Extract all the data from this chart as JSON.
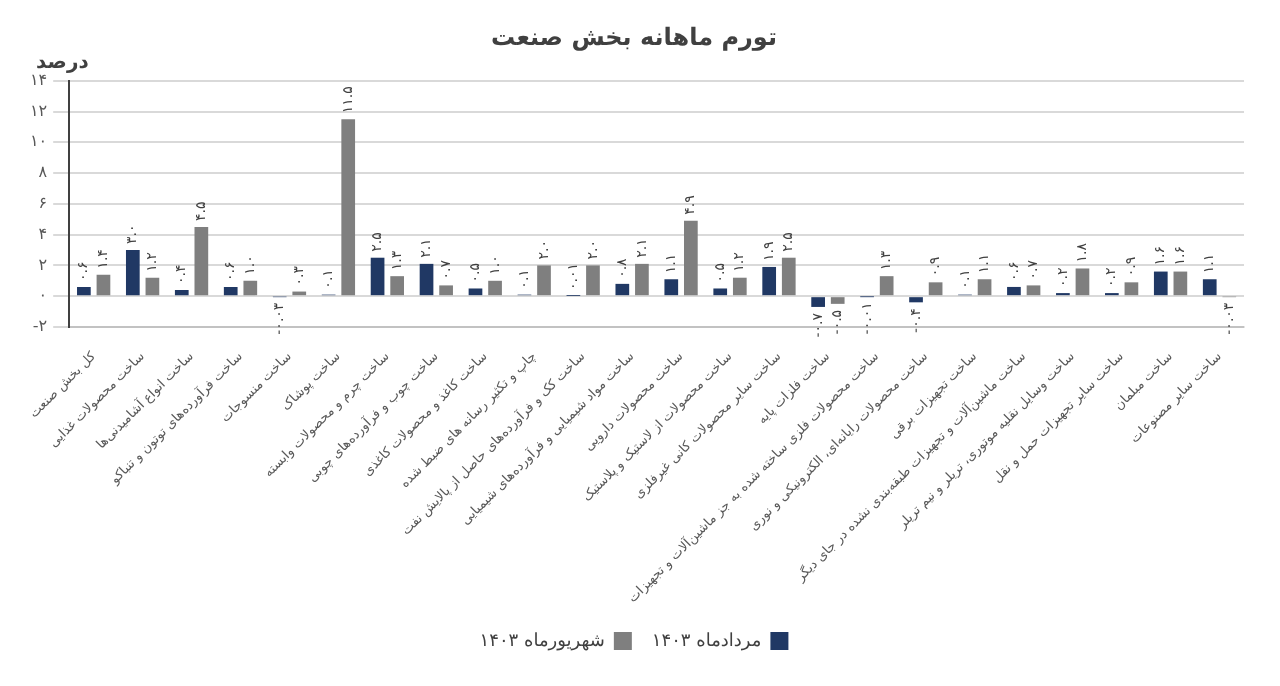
{
  "chart_data": {
    "type": "bar",
    "title": "تورم ماهانه بخش صنعت",
    "ylabel": "درصد",
    "categories": [
      "کل بخش صنعت",
      "ساخت محصولات غذایی",
      "ساخت انواع آشامیدنی‌ها",
      "ساخت فرآورده‌های توتون و تنباکو",
      "ساخت منسوجات",
      "ساخت پوشاک",
      "ساخت چرم و محصولات وابسته",
      "ساخت چوب و فرآورده‌های چوبی",
      "ساخت کاغذ و محصولات کاغذی",
      "چاپ و تکثیر رسانه های ضبط شده",
      "ساخت کک و فرآورده‌های حاصل از پالایش نفت",
      "ساخت مواد شیمیایی و فرآورده‌های شیمیایی",
      "ساخت محصولات دارویی",
      "ساخت محصولات از لاستیک و پلاستیک",
      "ساخت سایر محصولات کانی غیرفلزی",
      "ساخت فلزات پایه",
      "ساخت محصولات فلزی ساخته شده به جز ماشین‌آلات و تجهیزات",
      "ساخت محصولات رایانه‌ای، الکترونیکی و نوری",
      "ساخت تجهیزات برقی",
      "ساخت ماشین‌آلات و تجهیزات طبقه‌بندی نشده در جای دیگر",
      "ساخت وسایل نقلیه موتوری، تریلر و نیم تریلر",
      "ساخت سایر تجهیزات حمل و نقل",
      "ساخت مبلمان",
      "ساخت سایر مصنوعات"
    ],
    "series": [
      {
        "name": "مردادماه ۱۴۰۳",
        "color": "#203864",
        "values": [
          0.6,
          3.0,
          0.4,
          0.6,
          -0.03,
          0.1,
          2.5,
          2.1,
          0.5,
          0.1,
          0.01,
          0.8,
          1.1,
          0.5,
          1.9,
          -0.7,
          -0.01,
          -0.4,
          0.1,
          0.6,
          0.2,
          0.2,
          1.6,
          1.1
        ],
        "value_labels": [
          "۰.۶",
          "۳.۰",
          "۰.۴",
          "۰.۶",
          "-۰.۰۳",
          "۰.۱",
          "۲.۵",
          "۲.۱",
          "۰.۵",
          "۰.۱",
          "۰.۰۱",
          "۰.۸",
          "۱.۱",
          "۰.۵",
          "۱.۹",
          "-۰.۷",
          "-۰.۰۱",
          "-۰.۴",
          "۰.۱",
          "۰.۶",
          "۰.۲",
          "۰.۲",
          "۱.۶",
          "۱.۱"
        ]
      },
      {
        "name": "شهریورماه ۱۴۰۳",
        "color": "#7f7f7f",
        "values": [
          1.4,
          1.2,
          4.5,
          1.0,
          0.3,
          11.5,
          1.3,
          0.7,
          1.0,
          2.0,
          2.0,
          2.1,
          4.9,
          1.2,
          2.5,
          -0.5,
          1.3,
          0.9,
          1.1,
          0.7,
          1.8,
          0.9,
          1.6,
          -0.03
        ],
        "value_labels": [
          "۱.۴",
          "۱.۲",
          "۴.۵",
          "۱.۰",
          "۰.۳",
          "۱۱.۵",
          "۱.۳",
          "۰.۷",
          "۱.۰",
          "۲.۰",
          "۲.۰",
          "۲.۱",
          "۴.۹",
          "۱.۲",
          "۲.۵",
          "-۰.۵",
          "۱.۳",
          "۰.۹",
          "۱.۱",
          "۰.۷",
          "۱.۸",
          "۰.۹",
          "۱.۶",
          "-۰.۰۳"
        ]
      }
    ],
    "ylim": [
      -2,
      14
    ],
    "yticks": [
      {
        "value": -2,
        "label": "-۲"
      },
      {
        "value": 0,
        "label": "۰"
      },
      {
        "value": 2,
        "label": "۲"
      },
      {
        "value": 4,
        "label": "۴"
      },
      {
        "value": 6,
        "label": "۶"
      },
      {
        "value": 8,
        "label": "۸"
      },
      {
        "value": 10,
        "label": "۱۰"
      },
      {
        "value": 12,
        "label": "۱۲"
      },
      {
        "value": 14,
        "label": "۱۴"
      }
    ],
    "grid": "y",
    "legend": "bottom"
  }
}
